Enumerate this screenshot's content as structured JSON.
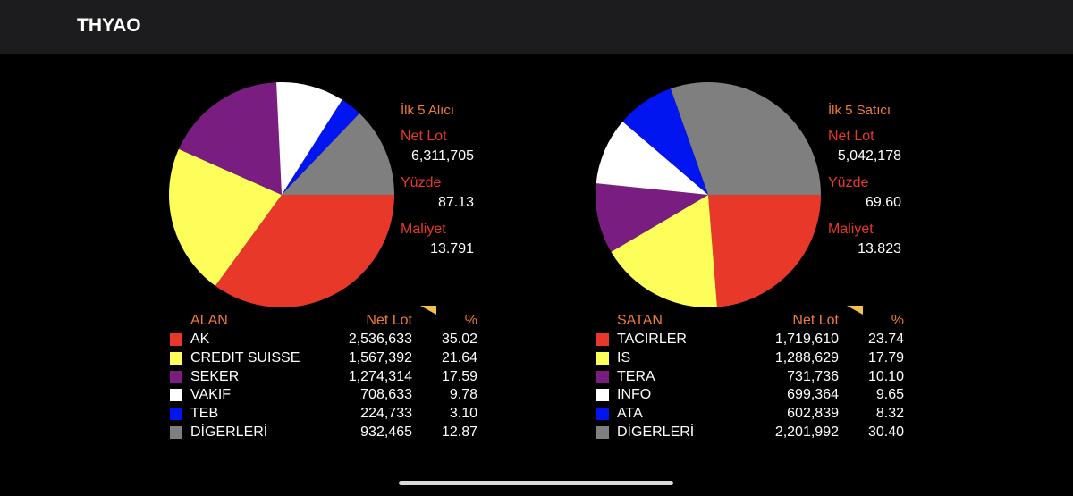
{
  "header": {
    "title": "THYAO"
  },
  "colors": {
    "red": "#e8382a",
    "yellow": "#fefe5a",
    "purple": "#7a1d80",
    "white": "#ffffff",
    "blue": "#0015f0",
    "gray": "#7f7f7f",
    "orange_label": "#f07a3a",
    "sort_flag": "#f2c14e"
  },
  "chart_data": [
    {
      "type": "pie",
      "title": "İlk 5 Alıcı",
      "summary": {
        "net_lot_label": "Net Lot",
        "net_lot": "6,311,705",
        "yuzde_label": "Yüzde",
        "yuzde": "87.13",
        "maliyet_label": "Maliyet",
        "maliyet": "13.791"
      },
      "table_header": {
        "name": "ALAN",
        "lot": "Net Lot",
        "pct": "%"
      },
      "slices": [
        {
          "name": "AK",
          "lot": "2,536,633",
          "pct": 35.02,
          "color": "#e8382a"
        },
        {
          "name": "CREDIT SUISSE",
          "lot": "1,567,392",
          "pct": 21.64,
          "color": "#fefe5a"
        },
        {
          "name": "SEKER",
          "lot": "1,274,314",
          "pct": 17.59,
          "color": "#7a1d80"
        },
        {
          "name": "VAKIF",
          "lot": "708,633",
          "pct": 9.78,
          "color": "#ffffff"
        },
        {
          "name": "TEB",
          "lot": "224,733",
          "pct": 3.1,
          "color": "#0015f0"
        },
        {
          "name": "DİGERLERİ",
          "lot": "932,465",
          "pct": 12.87,
          "color": "#7f7f7f"
        }
      ]
    },
    {
      "type": "pie",
      "title": "İlk 5 Satıcı",
      "summary": {
        "net_lot_label": "Net Lot",
        "net_lot": "5,042,178",
        "yuzde_label": "Yüzde",
        "yuzde": "69.60",
        "maliyet_label": "Maliyet",
        "maliyet": "13.823"
      },
      "table_header": {
        "name": "SATAN",
        "lot": "Net Lot",
        "pct": "%"
      },
      "slices": [
        {
          "name": "TACIRLER",
          "lot": "1,719,610",
          "pct": 23.74,
          "color": "#e8382a"
        },
        {
          "name": "IS",
          "lot": "1,288,629",
          "pct": 17.79,
          "color": "#fefe5a"
        },
        {
          "name": "TERA",
          "lot": "731,736",
          "pct": 10.1,
          "color": "#7a1d80"
        },
        {
          "name": "INFO",
          "lot": "699,364",
          "pct": 9.65,
          "color": "#ffffff"
        },
        {
          "name": "ATA",
          "lot": "602,839",
          "pct": 8.32,
          "color": "#0015f0"
        },
        {
          "name": "DİGERLERİ",
          "lot": "2,201,992",
          "pct": 30.4,
          "color": "#7f7f7f"
        }
      ]
    }
  ]
}
